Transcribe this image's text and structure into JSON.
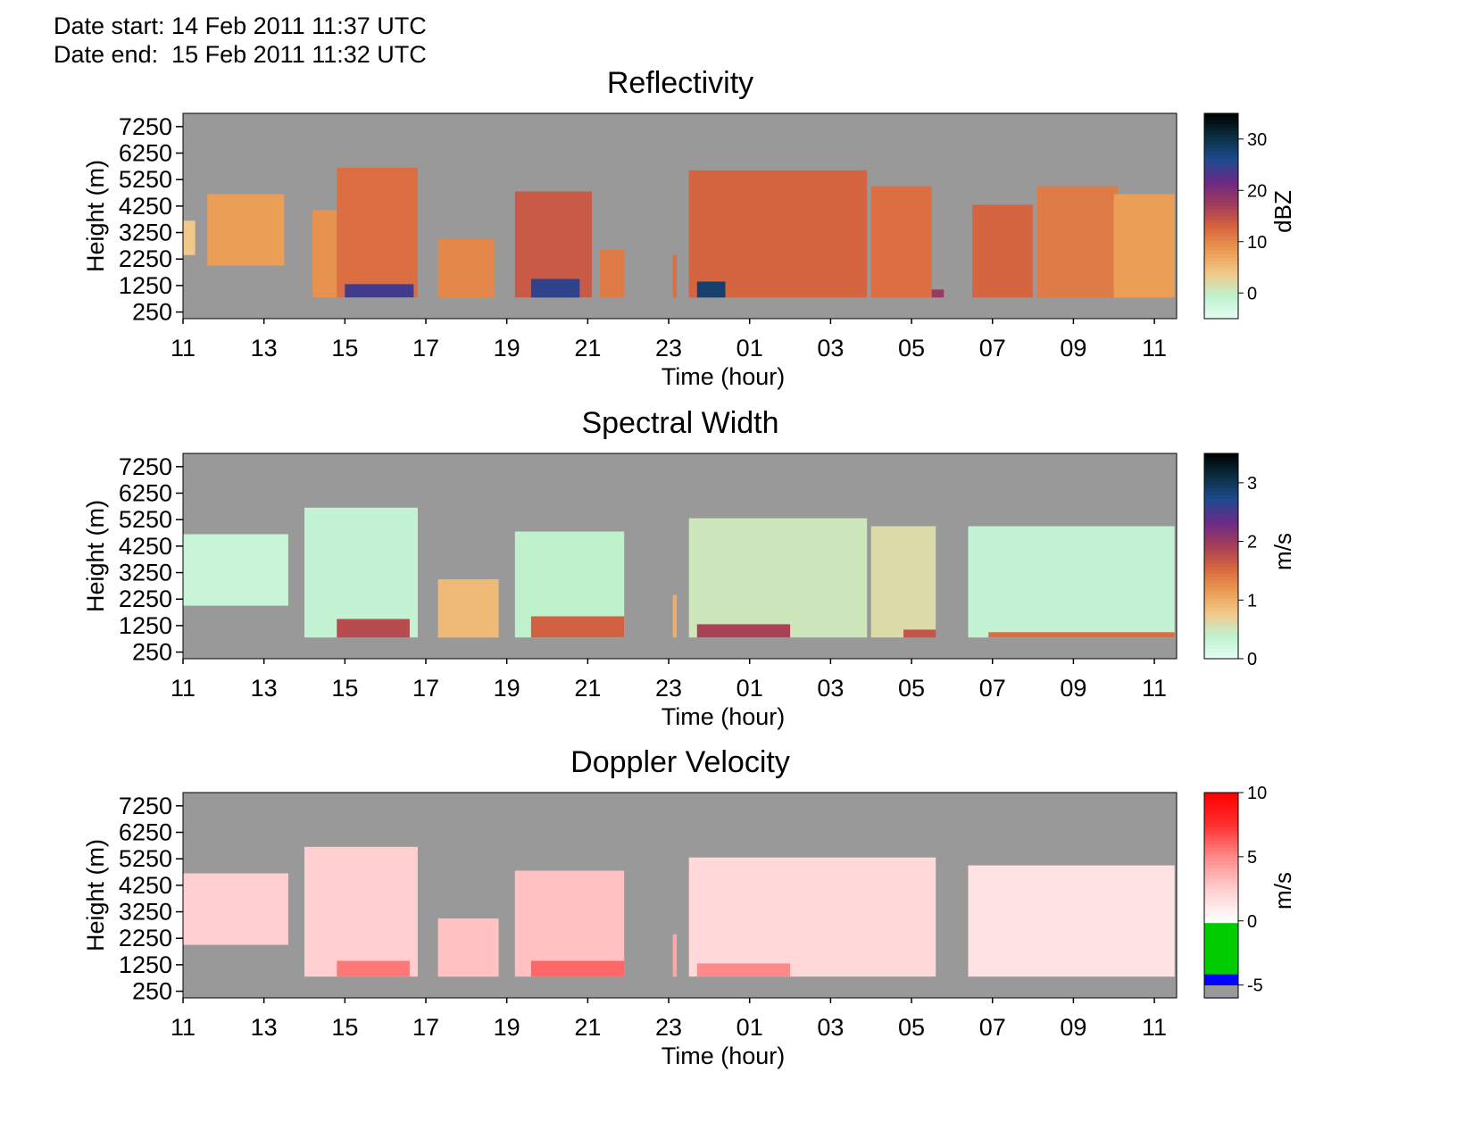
{
  "header": {
    "date_start": "Date start: 14 Feb 2011 11:37 UTC",
    "date_end": "Date end:  15 Feb 2011 11:32 UTC"
  },
  "colors": {
    "background_no_data": "#999999",
    "plot_frame": "#000000",
    "sequential_colormap": [
      "#e6fff4",
      "#bff2cf",
      "#f2c98a",
      "#ea9a52",
      "#d8663f",
      "#a33c5a",
      "#6a2a86",
      "#1e4a8f",
      "#0a2f3f",
      "#000000"
    ],
    "velocity_colormap": [
      "#ffcfcf",
      "#ff8a8a",
      "#ff3030",
      "#ff0000"
    ],
    "velocity_negative": [
      "#00cc00",
      "#0000ff"
    ]
  },
  "chart_data": [
    {
      "type": "heatmap",
      "title": "Reflectivity",
      "xlabel": "Time (hour)",
      "ylabel": "Height (m)",
      "x_ticks": [
        "11",
        "13",
        "15",
        "17",
        "19",
        "21",
        "23",
        "01",
        "03",
        "05",
        "07",
        "09",
        "11"
      ],
      "y_ticks": [
        7250,
        6250,
        5250,
        4250,
        3250,
        2250,
        1250,
        250
      ],
      "ylim": [
        0,
        7750
      ],
      "colorbar": {
        "label": "dBZ",
        "ticks": [
          30,
          20,
          10,
          0
        ],
        "range": [
          -5,
          35
        ]
      },
      "echo_cells": [
        {
          "start": 11.0,
          "end": 11.3,
          "base": 2400,
          "top": 3700,
          "value": 4
        },
        {
          "start": 11.6,
          "end": 13.5,
          "base": 2000,
          "top": 4700,
          "value": 8
        },
        {
          "start": 14.2,
          "end": 14.8,
          "base": 800,
          "top": 4100,
          "value": 9
        },
        {
          "start": 14.8,
          "end": 16.8,
          "base": 800,
          "top": 5700,
          "value": 12
        },
        {
          "start": 15.0,
          "end": 16.7,
          "base": 800,
          "top": 1300,
          "value": 24
        },
        {
          "start": 17.3,
          "end": 18.7,
          "base": 800,
          "top": 3000,
          "value": 10
        },
        {
          "start": 19.2,
          "end": 21.1,
          "base": 800,
          "top": 4800,
          "value": 14
        },
        {
          "start": 19.6,
          "end": 20.8,
          "base": 800,
          "top": 1500,
          "value": 25
        },
        {
          "start": 21.3,
          "end": 21.9,
          "base": 800,
          "top": 2600,
          "value": 11
        },
        {
          "start": 23.1,
          "end": 23.2,
          "base": 800,
          "top": 2400,
          "value": 12
        },
        {
          "start": 23.5,
          "end": 27.9,
          "base": 800,
          "top": 5600,
          "value": 13
        },
        {
          "start": 23.7,
          "end": 24.4,
          "base": 800,
          "top": 1400,
          "value": 28
        },
        {
          "start": 28.0,
          "end": 29.5,
          "base": 800,
          "top": 5000,
          "value": 12
        },
        {
          "start": 29.5,
          "end": 29.8,
          "base": 800,
          "top": 1100,
          "value": 18
        },
        {
          "start": 30.5,
          "end": 32.0,
          "base": 800,
          "top": 4300,
          "value": 13
        },
        {
          "start": 32.1,
          "end": 34.1,
          "base": 800,
          "top": 5000,
          "value": 11
        },
        {
          "start": 34.0,
          "end": 35.5,
          "base": 800,
          "top": 4700,
          "value": 8
        }
      ]
    },
    {
      "type": "heatmap",
      "title": "Spectral Width",
      "xlabel": "Time (hour)",
      "ylabel": "Height (m)",
      "x_ticks": [
        "11",
        "13",
        "15",
        "17",
        "19",
        "21",
        "23",
        "01",
        "03",
        "05",
        "07",
        "09",
        "11"
      ],
      "y_ticks": [
        7250,
        6250,
        5250,
        4250,
        3250,
        2250,
        1250,
        250
      ],
      "ylim": [
        0,
        7750
      ],
      "colorbar": {
        "label": "m/s",
        "ticks": [
          3,
          2,
          1,
          0
        ],
        "range": [
          0,
          3.5
        ]
      },
      "echo_cells": [
        {
          "start": 11.0,
          "end": 13.6,
          "base": 2000,
          "top": 4700,
          "value": 0.3
        },
        {
          "start": 14.0,
          "end": 16.8,
          "base": 800,
          "top": 5700,
          "value": 0.35
        },
        {
          "start": 14.8,
          "end": 16.6,
          "base": 800,
          "top": 1500,
          "value": 1.8
        },
        {
          "start": 17.3,
          "end": 18.8,
          "base": 800,
          "top": 3000,
          "value": 0.9
        },
        {
          "start": 19.2,
          "end": 21.9,
          "base": 800,
          "top": 4800,
          "value": 0.4
        },
        {
          "start": 19.6,
          "end": 21.9,
          "base": 800,
          "top": 1600,
          "value": 1.6
        },
        {
          "start": 23.1,
          "end": 23.2,
          "base": 800,
          "top": 2400,
          "value": 1.0
        },
        {
          "start": 23.5,
          "end": 27.9,
          "base": 800,
          "top": 5300,
          "value": 0.5
        },
        {
          "start": 23.7,
          "end": 26.0,
          "base": 800,
          "top": 1300,
          "value": 1.9
        },
        {
          "start": 28.0,
          "end": 29.6,
          "base": 800,
          "top": 5000,
          "value": 0.6
        },
        {
          "start": 28.8,
          "end": 29.6,
          "base": 800,
          "top": 1100,
          "value": 1.7
        },
        {
          "start": 30.4,
          "end": 35.5,
          "base": 800,
          "top": 5000,
          "value": 0.35
        },
        {
          "start": 30.9,
          "end": 35.5,
          "base": 800,
          "top": 1000,
          "value": 1.5
        }
      ]
    },
    {
      "type": "heatmap",
      "title": "Doppler Velocity",
      "xlabel": "Time (hour)",
      "ylabel": "Height (m)",
      "x_ticks": [
        "11",
        "13",
        "15",
        "17",
        "19",
        "21",
        "23",
        "01",
        "03",
        "05",
        "07",
        "09",
        "11"
      ],
      "y_ticks": [
        7250,
        6250,
        5250,
        4250,
        3250,
        2250,
        1250,
        250
      ],
      "ylim": [
        0,
        7750
      ],
      "colorbar": {
        "label": "m/s",
        "ticks": [
          10,
          5,
          0,
          -5
        ],
        "range": [
          -6,
          10
        ]
      },
      "echo_cells": [
        {
          "start": 11.0,
          "end": 13.6,
          "base": 2000,
          "top": 4700,
          "value": 2.5
        },
        {
          "start": 14.0,
          "end": 16.8,
          "base": 800,
          "top": 5700,
          "value": 2.5
        },
        {
          "start": 14.8,
          "end": 16.6,
          "base": 800,
          "top": 1400,
          "value": 5.5
        },
        {
          "start": 17.3,
          "end": 18.8,
          "base": 800,
          "top": 3000,
          "value": 3.0
        },
        {
          "start": 19.2,
          "end": 21.9,
          "base": 800,
          "top": 4800,
          "value": 3.0
        },
        {
          "start": 19.6,
          "end": 21.9,
          "base": 800,
          "top": 1400,
          "value": 6.0
        },
        {
          "start": 23.1,
          "end": 23.2,
          "base": 800,
          "top": 2400,
          "value": 4.0
        },
        {
          "start": 23.5,
          "end": 29.6,
          "base": 800,
          "top": 5300,
          "value": 2.0
        },
        {
          "start": 23.7,
          "end": 26.0,
          "base": 800,
          "top": 1300,
          "value": 5.0
        },
        {
          "start": 30.4,
          "end": 35.5,
          "base": 800,
          "top": 5000,
          "value": 1.5
        }
      ]
    }
  ]
}
